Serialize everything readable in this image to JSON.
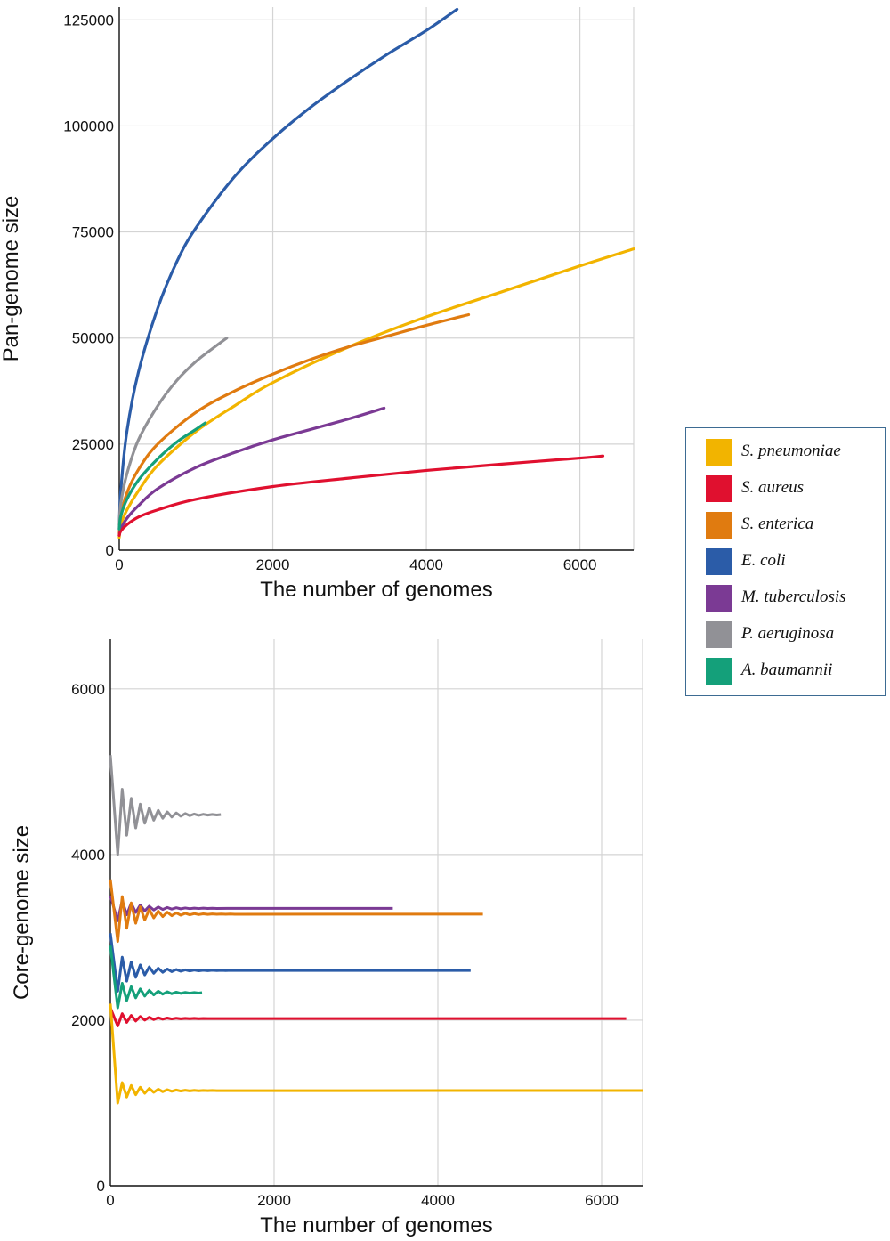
{
  "chart_data": [
    {
      "type": "line",
      "title": "",
      "xlabel": "The number of genomes",
      "ylabel": "Pan-genome size",
      "xlim": [
        0,
        6700
      ],
      "ylim": [
        0,
        128000
      ],
      "xticks": [
        0,
        2000,
        4000,
        6000
      ],
      "yticks": [
        0,
        25000,
        50000,
        75000,
        100000,
        125000
      ],
      "grid": true,
      "series": [
        {
          "name": "E. coli",
          "color": "#2b5ca8",
          "x": [
            0,
            20,
            100,
            250,
            500,
            750,
            1000,
            1500,
            2000,
            2500,
            3000,
            3500,
            4000,
            4400
          ],
          "y": [
            5000,
            14000,
            28000,
            42000,
            57000,
            68000,
            76000,
            88000,
            97000,
            104500,
            111000,
            117000,
            122500,
            127500
          ]
        },
        {
          "name": "S. pneumoniae",
          "color": "#f2b400",
          "x": [
            0,
            20,
            100,
            250,
            500,
            1000,
            1500,
            2000,
            3000,
            4000,
            5000,
            6000,
            6700
          ],
          "y": [
            3000,
            6000,
            9500,
            14000,
            20000,
            28000,
            34000,
            39500,
            48000,
            55000,
            61000,
            67000,
            71000
          ]
        },
        {
          "name": "S. enterica",
          "color": "#e07b10",
          "x": [
            0,
            20,
            100,
            250,
            500,
            1000,
            1500,
            2000,
            2500,
            3000,
            3500,
            4000,
            4550
          ],
          "y": [
            4000,
            8000,
            13500,
            19000,
            25000,
            32500,
            37500,
            41500,
            45000,
            48000,
            50500,
            53000,
            55500
          ]
        },
        {
          "name": "M. tuberculosis",
          "color": "#7b3a94",
          "x": [
            0,
            20,
            100,
            250,
            500,
            1000,
            1500,
            2000,
            2500,
            3000,
            3450
          ],
          "y": [
            3500,
            5000,
            7500,
            10500,
            14500,
            19500,
            23000,
            26000,
            28500,
            31000,
            33500
          ]
        },
        {
          "name": "S. aureus",
          "color": "#e0102f",
          "x": [
            0,
            20,
            100,
            250,
            500,
            1000,
            2000,
            3000,
            4000,
            5000,
            6000,
            6300
          ],
          "y": [
            3500,
            4500,
            6000,
            7800,
            9500,
            12000,
            15000,
            17000,
            18800,
            20300,
            21700,
            22200
          ]
        },
        {
          "name": "P. aeruginosa",
          "color": "#919196",
          "x": [
            0,
            20,
            100,
            250,
            500,
            750,
            1000,
            1250,
            1400
          ],
          "y": [
            6000,
            11000,
            18000,
            26000,
            34000,
            40000,
            44500,
            48000,
            50000
          ]
        },
        {
          "name": "A. baumannii",
          "color": "#14a07a",
          "x": [
            0,
            20,
            100,
            250,
            500,
            750,
            1000,
            1120
          ],
          "y": [
            5000,
            8000,
            12000,
            16500,
            21500,
            25500,
            28500,
            30000
          ]
        }
      ]
    },
    {
      "type": "line",
      "title": "",
      "xlabel": "The number of genomes",
      "ylabel": "Core-genome size",
      "xlim": [
        0,
        6500
      ],
      "ylim": [
        0,
        6600
      ],
      "xticks": [
        0,
        2000,
        4000,
        6000
      ],
      "yticks": [
        0,
        2000,
        4000,
        6000
      ],
      "grid": true,
      "series": [
        {
          "name": "P. aeruginosa",
          "color": "#919196",
          "start": 5200,
          "low": 4000,
          "plateau": 4480,
          "xmax": 1350
        },
        {
          "name": "M. tuberculosis",
          "color": "#7b3a94",
          "start": 3500,
          "low": 3200,
          "plateau": 3350,
          "xmax": 3450
        },
        {
          "name": "S. enterica",
          "color": "#e07b10",
          "start": 3700,
          "low": 2950,
          "plateau": 3280,
          "xmax": 4550
        },
        {
          "name": "E. coli",
          "color": "#2b5ca8",
          "start": 3050,
          "low": 2350,
          "plateau": 2600,
          "xmax": 4400
        },
        {
          "name": "A. baumannii",
          "color": "#14a07a",
          "start": 2900,
          "low": 2150,
          "plateau": 2330,
          "xmax": 1120
        },
        {
          "name": "S. aureus",
          "color": "#e0102f",
          "start": 2150,
          "low": 1930,
          "plateau": 2020,
          "xmax": 6300
        },
        {
          "name": "S. pneumoniae",
          "color": "#f2b400",
          "start": 2200,
          "low": 1000,
          "plateau": 1150,
          "xmax": 6500
        }
      ]
    }
  ],
  "legend": {
    "items": [
      {
        "label": "S. pneumoniae",
        "color": "#f2b400"
      },
      {
        "label": "S. aureus",
        "color": "#e0102f"
      },
      {
        "label": "S. enterica",
        "color": "#e07b10"
      },
      {
        "label": "E. coli",
        "color": "#2b5ca8"
      },
      {
        "label": "M. tuberculosis",
        "color": "#7b3a94"
      },
      {
        "label": "P. aeruginosa",
        "color": "#919196"
      },
      {
        "label": "A. baumannii",
        "color": "#14a07a"
      }
    ]
  }
}
